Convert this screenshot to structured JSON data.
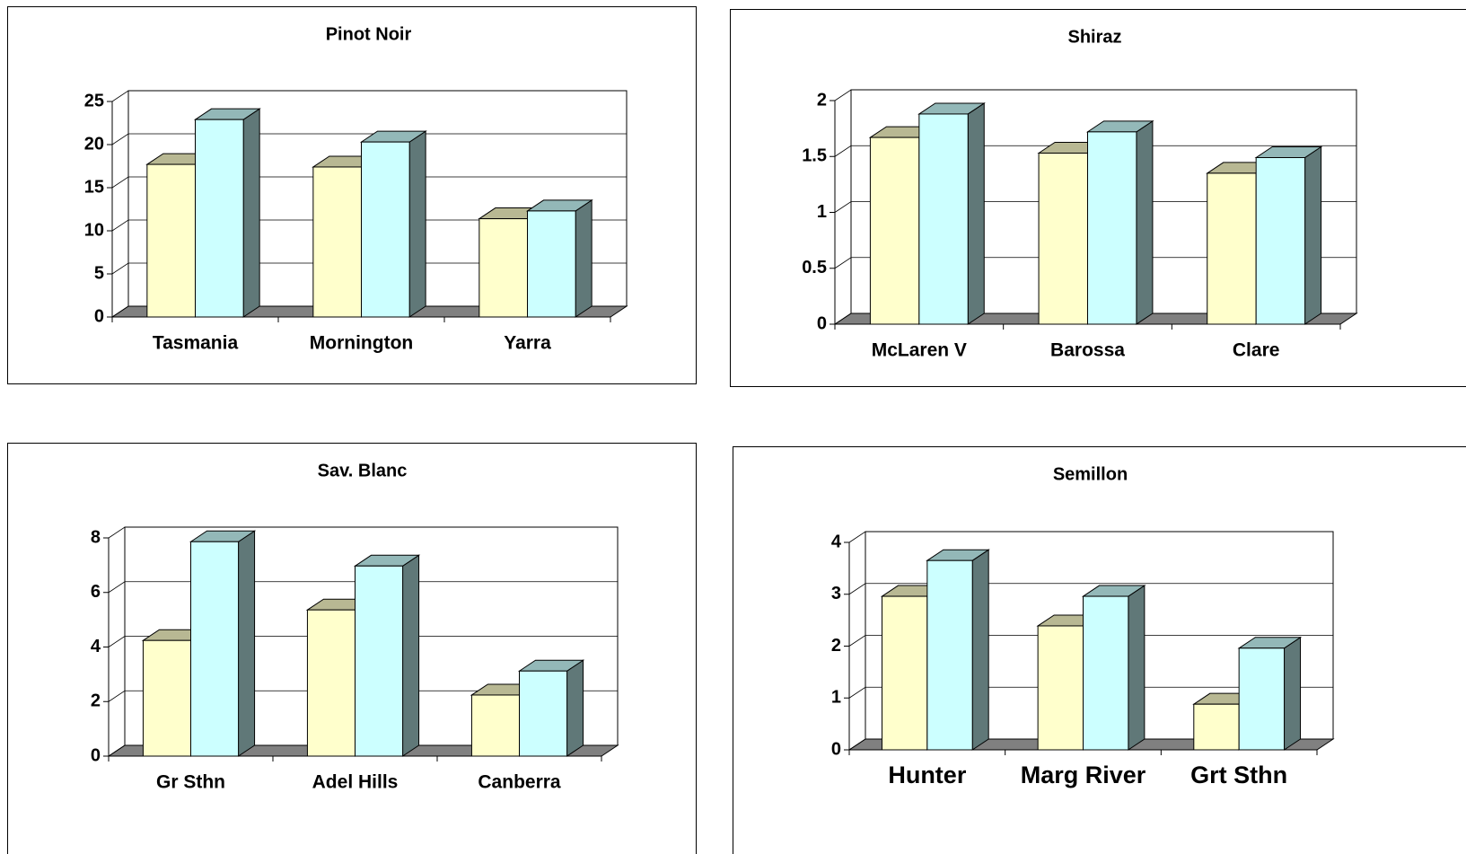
{
  "chart_data": [
    {
      "type": "bar",
      "title": "Pinot Noir",
      "categories": [
        "Tasmania",
        "Mornington",
        "Yarra"
      ],
      "series": [
        {
          "color": "#ffffcc",
          "values": [
            17.7,
            17.4,
            11.4
          ]
        },
        {
          "color": "#ccffff",
          "values": [
            22.9,
            20.3,
            12.3
          ]
        }
      ],
      "ylim": [
        0,
        25
      ],
      "yticks": [
        0,
        5,
        10,
        15,
        20,
        25
      ],
      "grid": true
    },
    {
      "type": "bar",
      "title": "Shiraz",
      "categories": [
        "McLaren V",
        "Barossa",
        "Clare"
      ],
      "series": [
        {
          "color": "#ffffcc",
          "values": [
            1.67,
            1.53,
            1.35
          ]
        },
        {
          "color": "#ccffff",
          "values": [
            1.88,
            1.72,
            1.49
          ]
        }
      ],
      "ylim": [
        0,
        2
      ],
      "yticks": [
        0,
        0.5,
        1,
        1.5,
        2
      ],
      "grid": true
    },
    {
      "type": "bar",
      "title": "Sav. Blanc",
      "categories": [
        "Gr Sthn",
        "Adel Hills",
        "Canberra"
      ],
      "series": [
        {
          "color": "#ffffcc",
          "values": [
            4.24,
            5.36,
            2.24
          ]
        },
        {
          "color": "#ccffff",
          "values": [
            7.86,
            6.97,
            3.12
          ]
        }
      ],
      "ylim": [
        0,
        8
      ],
      "yticks": [
        0,
        2,
        4,
        6,
        8
      ],
      "grid": true
    },
    {
      "type": "bar",
      "title": "Semillon",
      "categories": [
        "Hunter",
        "Marg River",
        "Grt Sthn"
      ],
      "series": [
        {
          "color": "#ffffcc",
          "values": [
            2.96,
            2.39,
            0.88
          ]
        },
        {
          "color": "#ccffff",
          "values": [
            3.65,
            2.96,
            1.96
          ]
        }
      ],
      "ylim": [
        0,
        4
      ],
      "yticks": [
        0,
        1,
        2,
        3,
        4
      ],
      "grid": true
    }
  ]
}
